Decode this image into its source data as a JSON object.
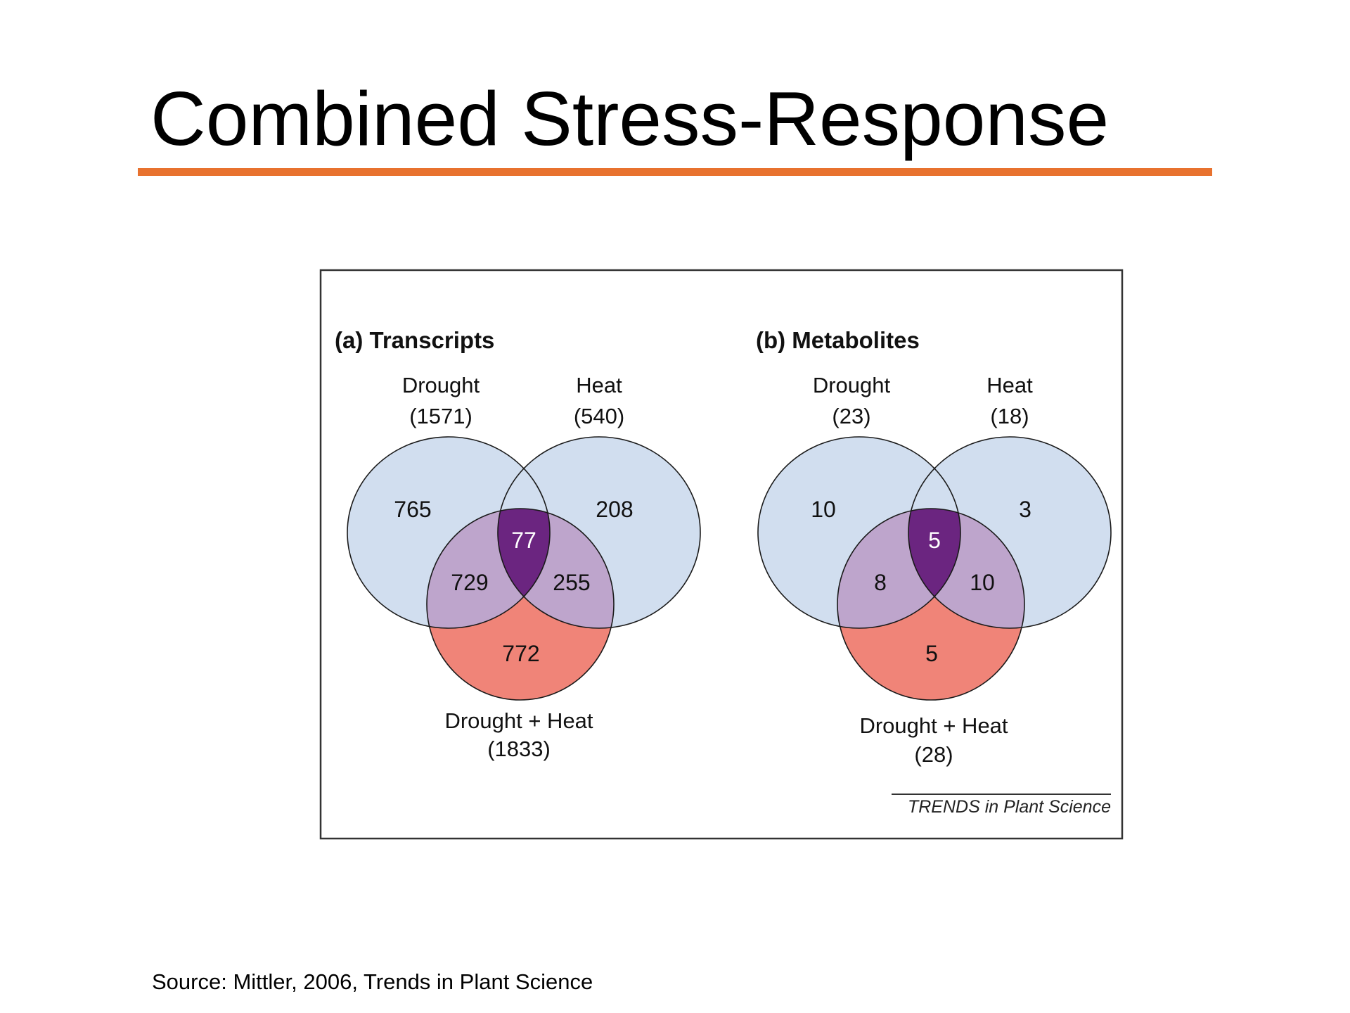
{
  "slide": {
    "title": "Combined Stress-Response",
    "accent_color": "#e8722f",
    "source": "Source: Mittler, 2006, Trends in Plant Science"
  },
  "figure": {
    "credit": "TRENDS in Plant Science",
    "colors": {
      "single": "#d1deef",
      "combined_only": "#f08478",
      "pairwise_with_combined": "#bea5cc",
      "all_three": "#6b2580"
    }
  },
  "chart_data": {
    "type": "venn",
    "panels": [
      {
        "title": "(a) Transcripts",
        "sets": [
          {
            "name": "Drought",
            "total": "(1571)"
          },
          {
            "name": "Heat",
            "total": "(540)"
          },
          {
            "name": "Drought + Heat",
            "total": "(1833)"
          }
        ],
        "regions": {
          "drought_only": 765,
          "heat_only": 208,
          "combined_only": 772,
          "drought_and_combined": 729,
          "heat_and_combined": 255,
          "all_three": 77
        }
      },
      {
        "title": "(b) Metabolites",
        "sets": [
          {
            "name": "Drought",
            "total": "(23)"
          },
          {
            "name": "Heat",
            "total": "(18)"
          },
          {
            "name": "Drought + Heat",
            "total": "(28)"
          }
        ],
        "regions": {
          "drought_only": 10,
          "heat_only": 3,
          "combined_only": 5,
          "drought_and_combined": 8,
          "heat_and_combined": 10,
          "all_three": 5
        }
      }
    ]
  }
}
